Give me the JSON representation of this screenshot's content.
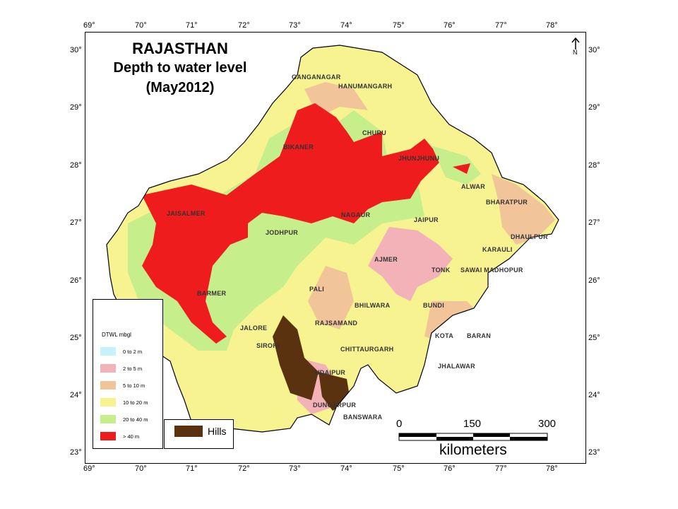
{
  "title": {
    "line1": "RAJASTHAN",
    "line2": "Depth to water level",
    "line3": "(May2012)"
  },
  "longitude_ticks": [
    "69°",
    "70°",
    "71°",
    "72°",
    "73°",
    "74°",
    "75°",
    "76°",
    "77°",
    "78°"
  ],
  "latitude_ticks": [
    "30°",
    "29°",
    "28°",
    "27°",
    "26°",
    "25°",
    "24°",
    "23°"
  ],
  "legend": {
    "title": "DTWL mbgl",
    "items": [
      {
        "label": "0 to 2 m",
        "color": "#c8f2fa"
      },
      {
        "label": "2 to 5 m",
        "color": "#f2b2b8"
      },
      {
        "label": "5 to 10 m",
        "color": "#f2c49a"
      },
      {
        "label": "10 to 20 m",
        "color": "#f7f391"
      },
      {
        "label": "20 to 40 m",
        "color": "#c6ee8a"
      },
      {
        "label": "> 40 m",
        "color": "#ee1c1c"
      }
    ]
  },
  "hills": {
    "label": "Hills",
    "color": "#5a3210"
  },
  "scale": {
    "labels": [
      "0",
      "150",
      "300"
    ],
    "unit": "kilometers"
  },
  "north_label": "N",
  "districts": [
    "GANGANAGAR",
    "HANUMANGARH",
    "CHURU",
    "BIKANER",
    "JHUNJHUNU",
    "ALWAR",
    "BHARATPUR",
    "JAISALMER",
    "NAGAUR",
    "JAIPUR",
    "DHAULPUR",
    "JODHPUR",
    "KARAULI",
    "AJMER",
    "TONK",
    "SAWAI MADHOPUR",
    "BARMER",
    "PALI",
    "BHILWARA",
    "BUNDI",
    "JALORE",
    "RAJSAMAND",
    "KOTA",
    "BARAN",
    "SIROHI",
    "CHITTAURGARH",
    "UDAIPUR",
    "JHALAWAR",
    "DUNGARPUR",
    "BANSWARA"
  ]
}
